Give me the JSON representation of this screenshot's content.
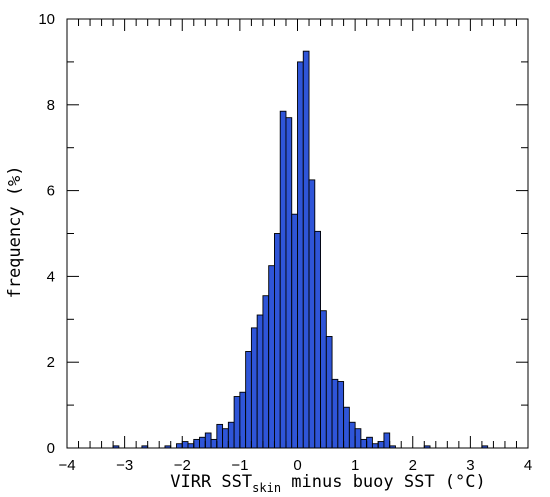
{
  "chart_data": {
    "type": "bar",
    "title": "",
    "xlabel": {
      "prefix": "VIRR SST",
      "subscript": "skin",
      "suffix": " minus buoy SST (°C)"
    },
    "ylabel": "frequency (%)",
    "xlim": [
      -4,
      4
    ],
    "ylim": [
      0,
      10
    ],
    "bin_width": 0.1,
    "grid": false,
    "x_ticks": [
      "−4",
      "−3",
      "−2",
      "−1",
      "0",
      "1",
      "2",
      "3",
      "4"
    ],
    "y_ticks": [
      "0",
      "2",
      "4",
      "6",
      "8",
      "10"
    ],
    "bins": [
      {
        "x": -3.2,
        "y": 0.05
      },
      {
        "x": -2.7,
        "y": 0.05
      },
      {
        "x": -2.3,
        "y": 0.05
      },
      {
        "x": -2.1,
        "y": 0.1
      },
      {
        "x": -2.0,
        "y": 0.15
      },
      {
        "x": -1.9,
        "y": 0.1
      },
      {
        "x": -1.8,
        "y": 0.2
      },
      {
        "x": -1.7,
        "y": 0.25
      },
      {
        "x": -1.6,
        "y": 0.35
      },
      {
        "x": -1.5,
        "y": 0.2
      },
      {
        "x": -1.4,
        "y": 0.55
      },
      {
        "x": -1.3,
        "y": 0.45
      },
      {
        "x": -1.2,
        "y": 0.6
      },
      {
        "x": -1.1,
        "y": 1.2
      },
      {
        "x": -1.0,
        "y": 1.3
      },
      {
        "x": -0.9,
        "y": 2.25
      },
      {
        "x": -0.8,
        "y": 2.8
      },
      {
        "x": -0.7,
        "y": 3.1
      },
      {
        "x": -0.6,
        "y": 3.55
      },
      {
        "x": -0.5,
        "y": 4.25
      },
      {
        "x": -0.4,
        "y": 5.0
      },
      {
        "x": -0.3,
        "y": 7.85
      },
      {
        "x": -0.2,
        "y": 7.7
      },
      {
        "x": -0.1,
        "y": 5.45
      },
      {
        "x": 0.0,
        "y": 9.0
      },
      {
        "x": 0.1,
        "y": 9.25
      },
      {
        "x": 0.2,
        "y": 6.25
      },
      {
        "x": 0.3,
        "y": 5.05
      },
      {
        "x": 0.4,
        "y": 3.2
      },
      {
        "x": 0.5,
        "y": 2.6
      },
      {
        "x": 0.6,
        "y": 1.6
      },
      {
        "x": 0.7,
        "y": 1.55
      },
      {
        "x": 0.8,
        "y": 0.95
      },
      {
        "x": 0.9,
        "y": 0.6
      },
      {
        "x": 1.0,
        "y": 0.45
      },
      {
        "x": 1.1,
        "y": 0.2
      },
      {
        "x": 1.2,
        "y": 0.25
      },
      {
        "x": 1.3,
        "y": 0.1
      },
      {
        "x": 1.4,
        "y": 0.15
      },
      {
        "x": 1.5,
        "y": 0.35
      },
      {
        "x": 1.6,
        "y": 0.05
      },
      {
        "x": 2.2,
        "y": 0.05
      },
      {
        "x": 3.2,
        "y": 0.05
      }
    ],
    "bar_color": "#2f55d8",
    "edge_color": "#000000"
  }
}
